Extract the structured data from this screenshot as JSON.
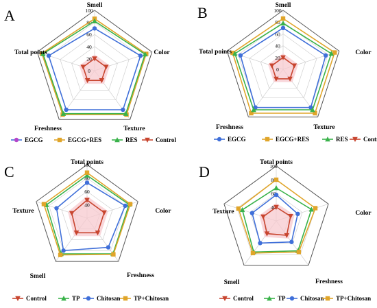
{
  "colors": {
    "blue": "#3f6fd9",
    "orange": "#e0a52a",
    "green": "#39b24a",
    "red": "#c8452f",
    "magenta": "#b545c9",
    "pink_fill": "#f7c9cf",
    "grid": "#9a9a9a",
    "grid_inner": "#cfcfcf"
  },
  "chart_data": [
    {
      "type": "radar",
      "panel_label": "A",
      "axes": [
        "Smell",
        "Color",
        "Texture",
        "Freshness",
        "Total points"
      ],
      "ticks": [
        "0",
        "20",
        "40",
        "60",
        "80",
        "100"
      ],
      "rlim": [
        0,
        100
      ],
      "legend_position": "bottom",
      "series": [
        {
          "name": "EGCG",
          "color": "#3f6fd9",
          "marker": "circle",
          "legend_marker_color": "#b545c9",
          "values": [
            70,
            80,
            80,
            80,
            80
          ]
        },
        {
          "name": "EGCG+RES",
          "color": "#e0a52a",
          "marker": "square",
          "values": [
            86,
            90,
            90,
            90,
            92
          ]
        },
        {
          "name": "RES",
          "color": "#39b24a",
          "marker": "triangle-up",
          "values": [
            82,
            88,
            88,
            88,
            90
          ]
        },
        {
          "name": "Control",
          "color": "#c8452f",
          "marker": "triangle-down",
          "values": [
            20,
            20,
            20,
            20,
            20
          ]
        }
      ]
    },
    {
      "type": "radar",
      "panel_label": "B",
      "axes": [
        "Smell",
        "Color",
        "Texture",
        "Freshness",
        "Total points"
      ],
      "ticks": [
        "0",
        "20",
        "40",
        "60",
        "80",
        "100"
      ],
      "rlim": [
        0,
        100
      ],
      "legend_position": "bottom",
      "series": [
        {
          "name": "EGCG",
          "color": "#3f6fd9",
          "marker": "circle",
          "values": [
            70,
            76,
            80,
            80,
            76
          ]
        },
        {
          "name": "EGCG+RES",
          "color": "#e0a52a",
          "marker": "square",
          "values": [
            86,
            92,
            92,
            92,
            90
          ]
        },
        {
          "name": "RES",
          "color": "#39b24a",
          "marker": "triangle-up",
          "values": [
            78,
            86,
            85,
            85,
            86
          ]
        },
        {
          "name": "Control",
          "color": "#c8452f",
          "marker": "triangle-down",
          "values": [
            20,
            20,
            20,
            20,
            20
          ]
        }
      ]
    },
    {
      "type": "radar",
      "panel_label": "C",
      "axes": [
        "Total points",
        "Color",
        "Freshness",
        "Smell",
        "Texture"
      ],
      "ticks": [
        "40",
        "60",
        "80",
        "100"
      ],
      "rlim": [
        20,
        100
      ],
      "legend_position": "bottom",
      "series": [
        {
          "name": "Control",
          "color": "#c8452f",
          "marker": "triangle-down",
          "values": [
            47,
            47,
            47,
            47,
            44
          ]
        },
        {
          "name": "TP",
          "color": "#39b24a",
          "marker": "triangle-up",
          "values": [
            84,
            86,
            86,
            86,
            84
          ]
        },
        {
          "name": "Chitosan",
          "color": "#3f6fd9",
          "marker": "circle",
          "values": [
            73,
            80,
            74,
            80,
            68
          ]
        },
        {
          "name": "TP+Chitosan",
          "color": "#e0a52a",
          "marker": "square",
          "values": [
            88,
            88,
            87,
            88,
            88
          ]
        }
      ]
    },
    {
      "type": "radar",
      "panel_label": "D",
      "axes": [
        "Total points",
        "Color",
        "Freshness",
        "Smell",
        "Texture"
      ],
      "ticks": [
        "40",
        "60",
        "80",
        "100"
      ],
      "rlim": [
        20,
        100
      ],
      "legend_position": "bottom",
      "series": [
        {
          "name": "Control",
          "color": "#c8452f",
          "marker": "triangle-down",
          "values": [
            40,
            42,
            46,
            43,
            40
          ]
        },
        {
          "name": "TP",
          "color": "#39b24a",
          "marker": "triangle-up",
          "values": [
            68,
            74,
            74,
            76,
            72
          ]
        },
        {
          "name": "Chitosan",
          "color": "#3f6fd9",
          "marker": "circle",
          "values": [
            58,
            53,
            58,
            60,
            57
          ]
        },
        {
          "name": "TP+Chitosan",
          "color": "#e0a52a",
          "marker": "square",
          "values": [
            80,
            80,
            76,
            78,
            78
          ]
        }
      ]
    }
  ]
}
